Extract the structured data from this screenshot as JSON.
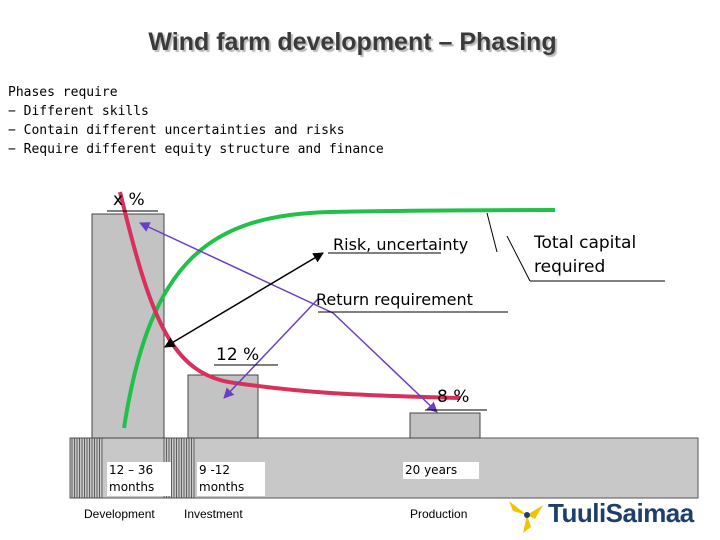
{
  "title": "Wind farm development – Phasing",
  "intro": {
    "heading": "Phases require",
    "bullets": [
      "Different skills",
      "Contain different uncertainties and risks",
      "Require different equity structure and finance"
    ]
  },
  "labels": {
    "x_pct": "x %",
    "risk": "Risk, uncertainty",
    "total_capital_line1": "Total capital",
    "total_capital_line2": "required",
    "return_req": "Return requirement",
    "pct_12": "12 %",
    "pct_8": "8 %"
  },
  "durations": {
    "development": "12 – 36\nmonths",
    "investment": "9 -12\nmonths",
    "production": "20 years"
  },
  "phases": {
    "development": "Development",
    "investment": "Investment",
    "production": "Production"
  },
  "logo": {
    "name": "TuuliSaimaa"
  },
  "colors": {
    "risk_curve": "#d8305c",
    "capital_curve": "#22c04a",
    "arrow": "#6a3fc4",
    "bar_fill": "#c3c3c3",
    "timeline_fill": "#c8c8c8",
    "logo_text": "#1e3e6c",
    "logo_mark": "#f2c400"
  }
}
